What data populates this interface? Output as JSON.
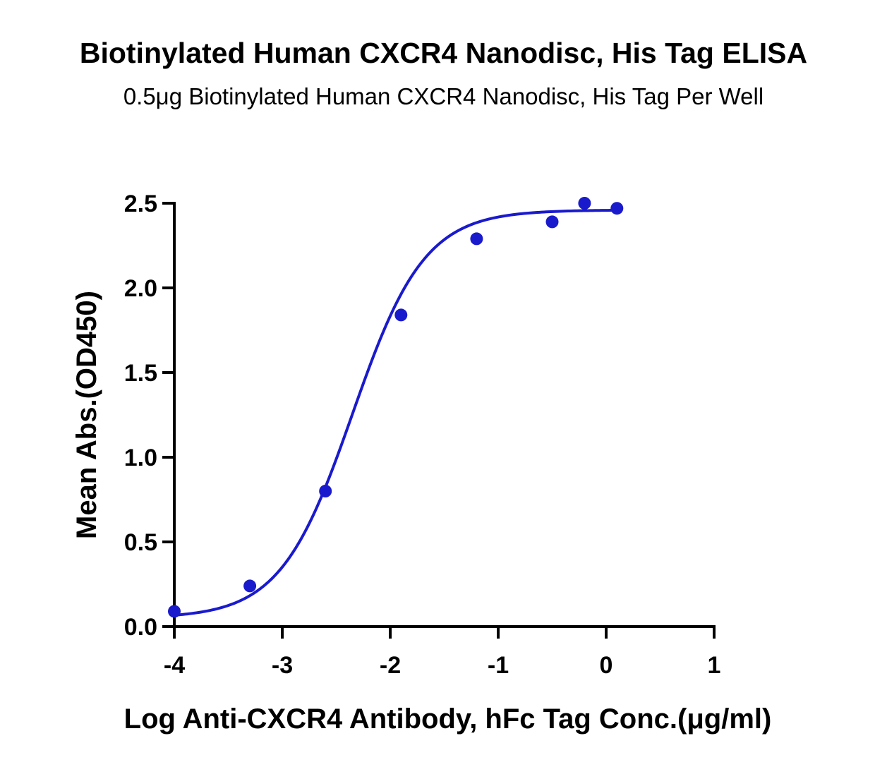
{
  "chart_data": {
    "type": "scatter",
    "title": "Biotinylated Human CXCR4 Nanodisc, His Tag ELISA",
    "subtitle": "0.5μg Biotinylated Human CXCR4 Nanodisc, His Tag Per Well",
    "xlabel": "Log Anti-CXCR4 Antibody, hFc Tag Conc.(μg/ml)",
    "ylabel": "Mean Abs.(OD450)",
    "xlim": [
      -4,
      1
    ],
    "ylim": [
      0,
      2.5
    ],
    "x_ticks": [
      "-4",
      "-3",
      "-2",
      "-1",
      "0",
      "1"
    ],
    "y_ticks": [
      "0.0",
      "0.5",
      "1.0",
      "1.5",
      "2.0",
      "2.5"
    ],
    "grid": false,
    "color": "#1a1acd",
    "series": [
      {
        "x": [
          -4.0,
          -3.3,
          -2.6,
          -1.9,
          -1.2,
          -0.5,
          -0.2,
          0.1
        ],
        "y": [
          0.09,
          0.24,
          0.8,
          1.84,
          2.29,
          2.39,
          2.5,
          2.47
        ]
      }
    ],
    "fit_curve": {
      "type": "4PL",
      "bottom": 0.05,
      "top": 2.46,
      "logEC50": -2.35,
      "hill": 1.3
    }
  }
}
